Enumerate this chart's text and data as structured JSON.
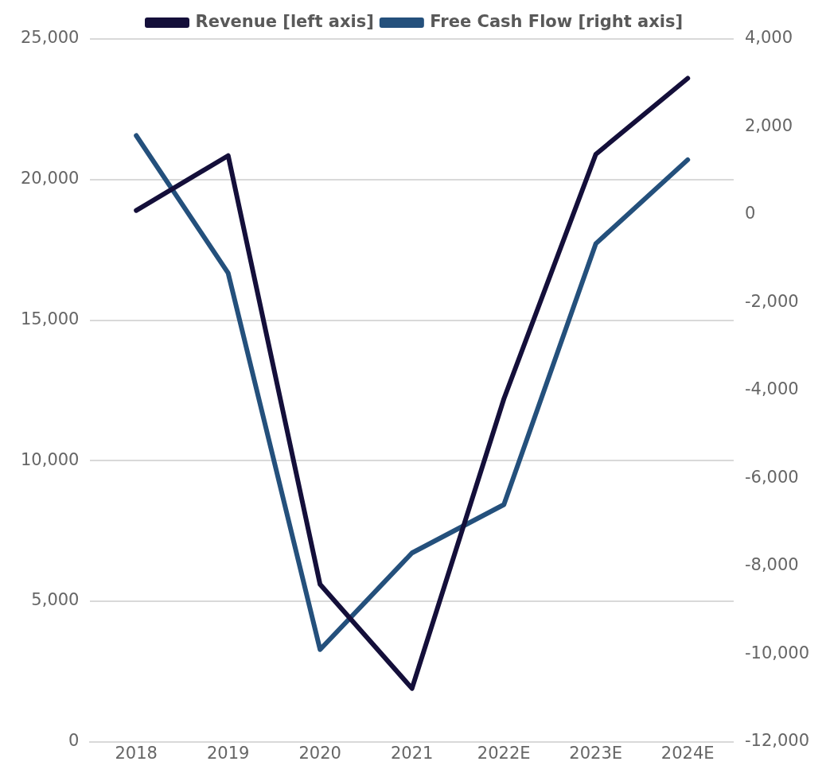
{
  "chart_data": {
    "type": "line",
    "categories": [
      "2018",
      "2019",
      "2020",
      "2021",
      "2022E",
      "2023E",
      "2024E"
    ],
    "series": [
      {
        "name": "Revenue [left axis]",
        "color": "#140f3a",
        "values": [
          18900,
          20850,
          5600,
          1900,
          12200,
          20900,
          23600
        ]
      },
      {
        "name": "Free Cash Flow [right axis]",
        "color": "#24507c",
        "axis": "y2",
        "values": [
          1800,
          -1330,
          -9900,
          -7700,
          -6600,
          -660,
          1250
        ]
      }
    ],
    "ylim": [
      0,
      25000
    ],
    "yticks": [
      {
        "value": 0,
        "label": "0"
      },
      {
        "value": 5000,
        "label": "5,000"
      },
      {
        "value": 10000,
        "label": "10,000"
      },
      {
        "value": 15000,
        "label": "15,000"
      },
      {
        "value": 20000,
        "label": "20,000"
      },
      {
        "value": 25000,
        "label": "25,000"
      }
    ],
    "y2lim": [
      -12000,
      4000
    ],
    "y2ticks": [
      {
        "value": -12000,
        "label": "-12,000"
      },
      {
        "value": -10000,
        "label": "-10,000"
      },
      {
        "value": -8000,
        "label": "-8,000"
      },
      {
        "value": -6000,
        "label": "-6,000"
      },
      {
        "value": -4000,
        "label": "-4,000"
      },
      {
        "value": -2000,
        "label": "-2,000"
      },
      {
        "value": 0,
        "label": "0"
      },
      {
        "value": 2000,
        "label": "2,000"
      },
      {
        "value": 4000,
        "label": "4,000"
      }
    ],
    "grid": "y",
    "legend": "top",
    "marker": "none",
    "line_style": "solid"
  }
}
